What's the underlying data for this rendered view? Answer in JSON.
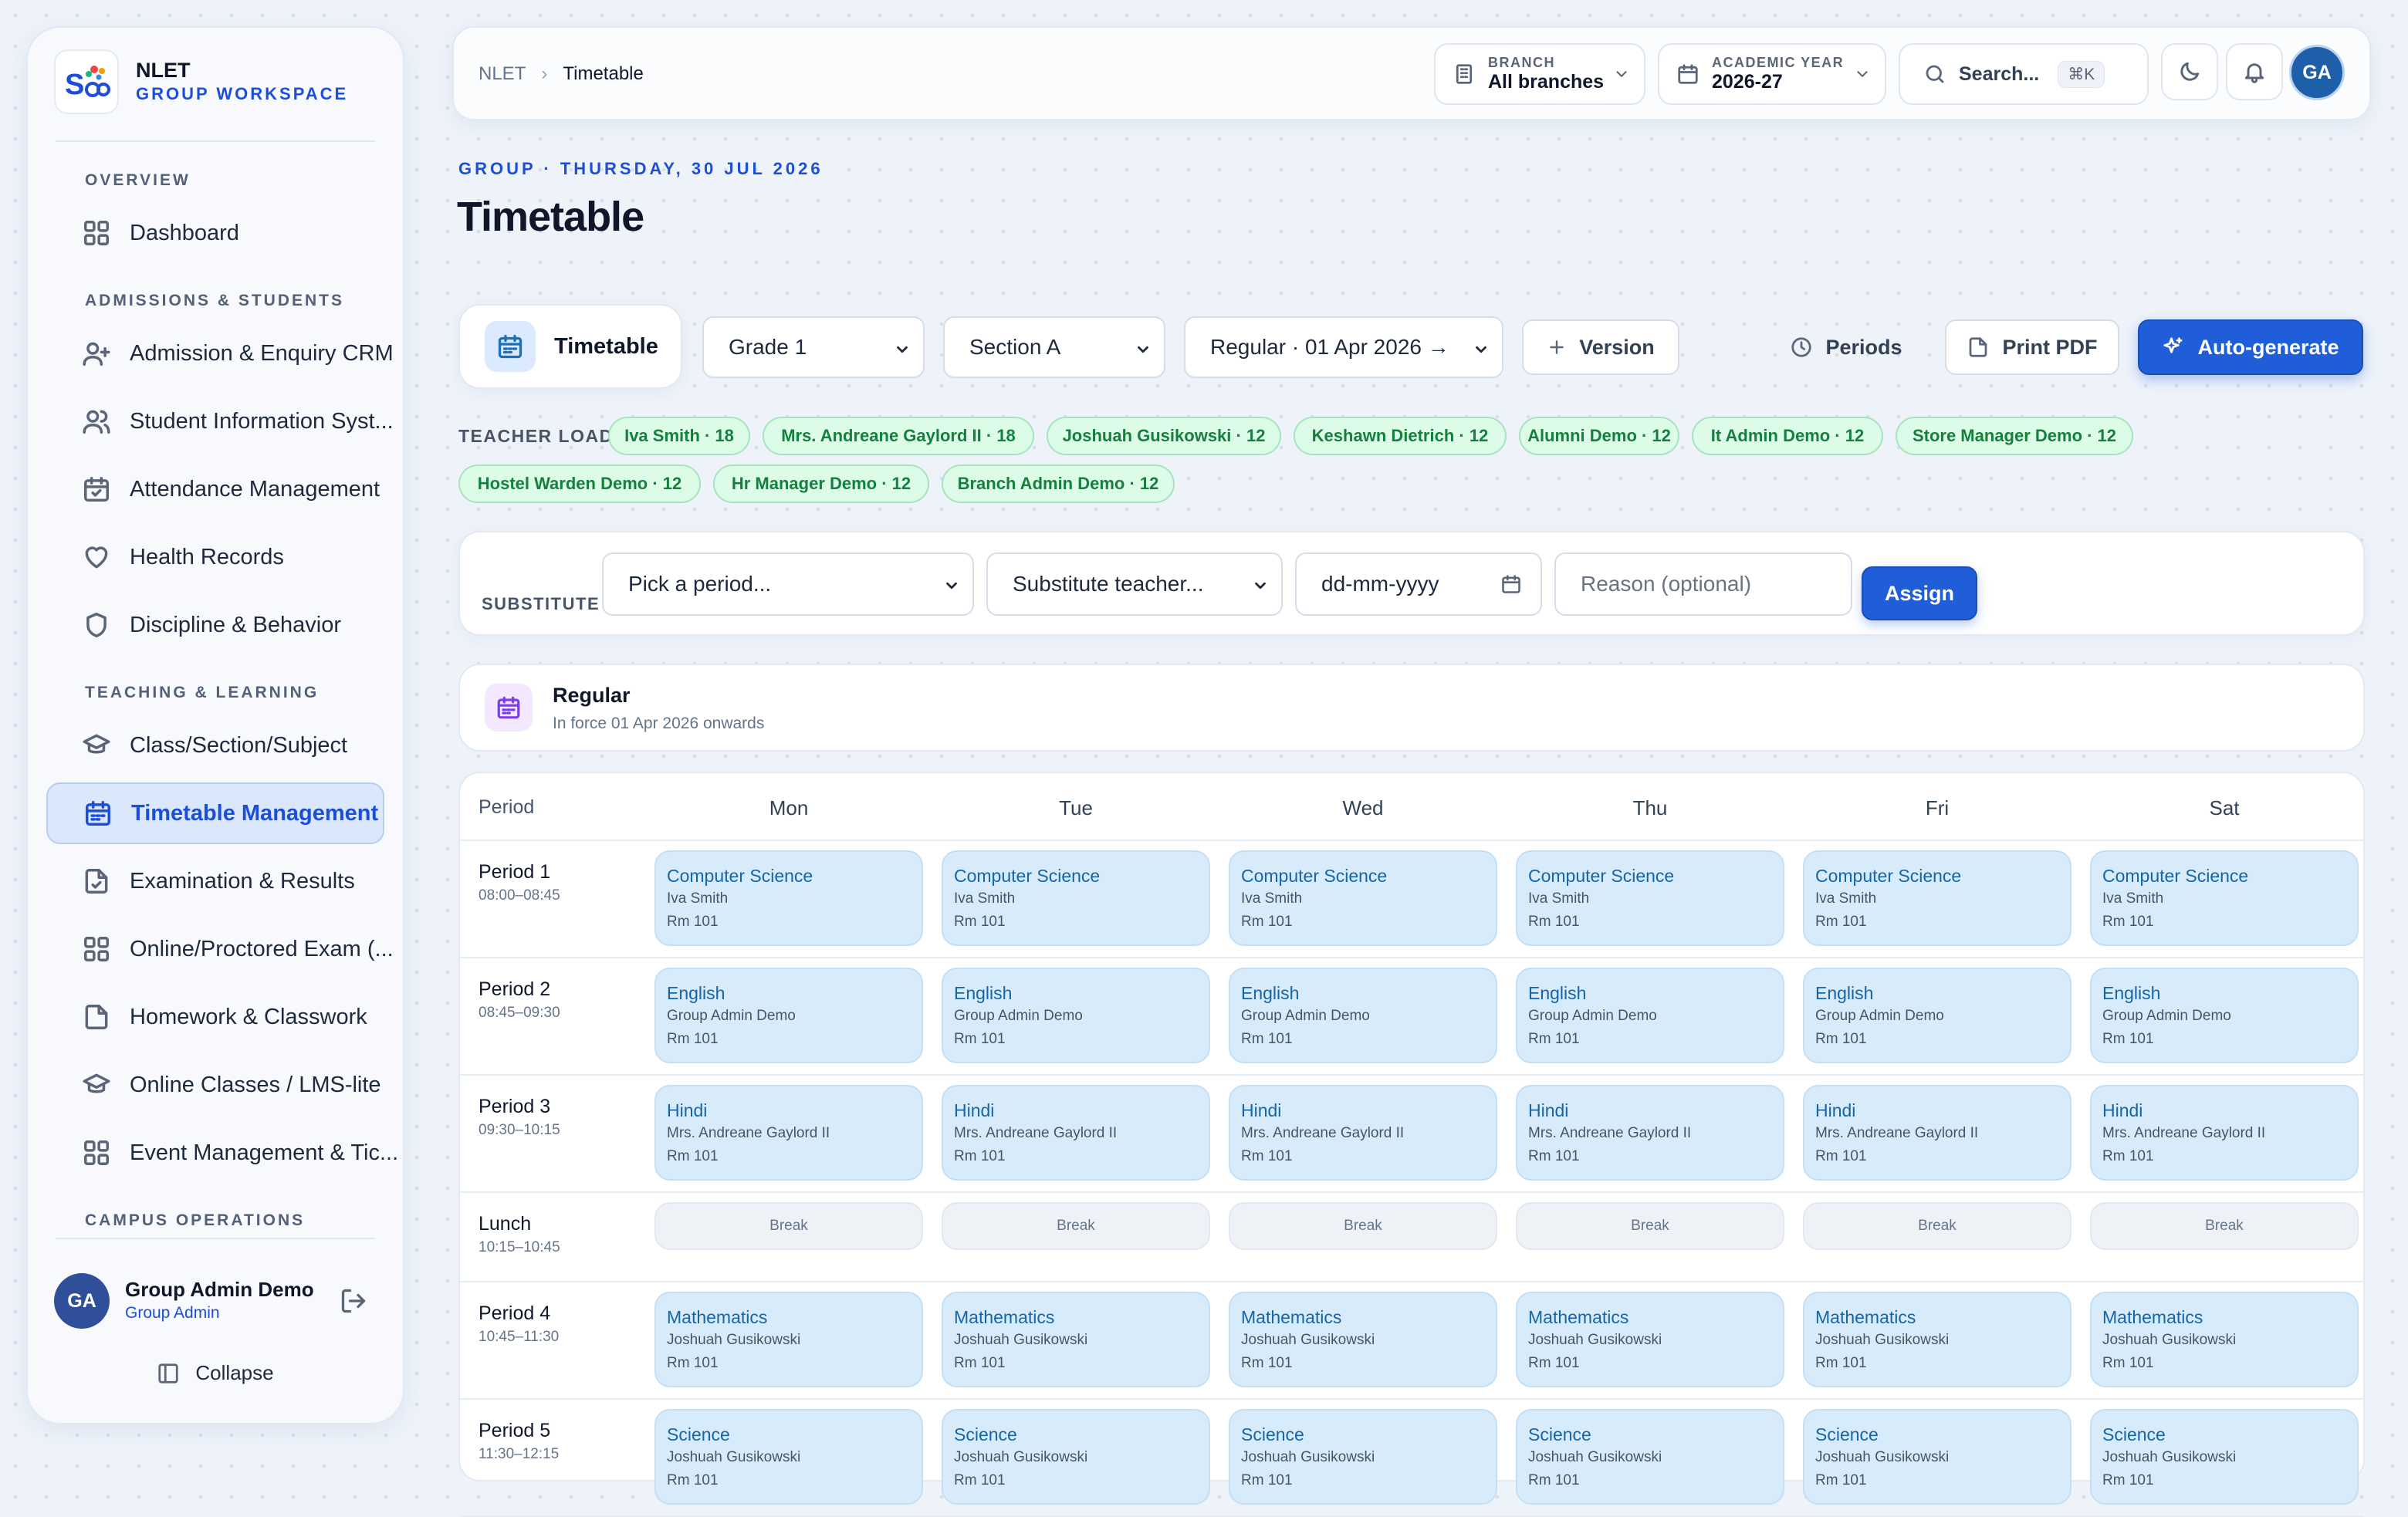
{
  "brand": {
    "name": "NLET",
    "subtitle": "GROUP WORKSPACE"
  },
  "sidebar": {
    "sections": [
      {
        "title": "OVERVIEW",
        "items": [
          {
            "label": "Dashboard",
            "icon": "grid-icon"
          }
        ]
      },
      {
        "title": "ADMISSIONS & STUDENTS",
        "items": [
          {
            "label": "Admission & Enquiry CRM",
            "icon": "user-plus-icon"
          },
          {
            "label": "Student Information Syst...",
            "icon": "users-icon"
          },
          {
            "label": "Attendance Management",
            "icon": "calendar-check-icon"
          },
          {
            "label": "Health Records",
            "icon": "heart-icon"
          },
          {
            "label": "Discipline & Behavior",
            "icon": "shield-icon"
          }
        ]
      },
      {
        "title": "TEACHING & LEARNING",
        "items": [
          {
            "label": "Class/Section/Subject",
            "icon": "graduation-cap-icon"
          },
          {
            "label": "Timetable Management",
            "icon": "calendar-icon",
            "active": true
          },
          {
            "label": "Examination & Results",
            "icon": "file-check-icon"
          },
          {
            "label": "Online/Proctored Exam (...",
            "icon": "grid-icon"
          },
          {
            "label": "Homework & Classwork",
            "icon": "file-icon"
          },
          {
            "label": "Online Classes / LMS-lite",
            "icon": "graduation-cap-icon"
          },
          {
            "label": "Event Management & Tic...",
            "icon": "grid-icon"
          }
        ]
      },
      {
        "title": "CAMPUS OPERATIONS",
        "items": []
      }
    ],
    "user": {
      "initials": "GA",
      "name": "Group Admin Demo",
      "role": "Group Admin"
    },
    "collapse_label": "Collapse"
  },
  "topbar": {
    "breadcrumb_root": "NLET",
    "breadcrumb_current": "Timetable",
    "branch_label": "BRANCH",
    "branch_value": "All branches",
    "year_label": "ACADEMIC YEAR",
    "year_value": "2026-27",
    "search_placeholder": "Search...",
    "search_shortcut": "⌘K",
    "avatar_initials": "GA"
  },
  "page": {
    "eyebrow": "GROUP · THURSDAY, 30 JUL 2026",
    "title": "Timetable"
  },
  "controls": {
    "chip_label": "Timetable",
    "grade": "Grade 1",
    "section": "Section A",
    "version": "Regular · 01 Apr 2026 →",
    "version_button": "Version",
    "periods_button": "Periods",
    "print_button": "Print PDF",
    "autogen_button": "Auto-generate"
  },
  "teacher_load": {
    "label": "TEACHER LOAD",
    "pills": [
      "Iva Smith · 18",
      "Mrs. Andreane Gaylord II · 18",
      "Joshuah Gusikowski · 12",
      "Keshawn Dietrich · 12",
      "Alumni Demo · 12",
      "It Admin Demo · 12",
      "Store Manager Demo · 12",
      "Hostel Warden Demo · 12",
      "Hr Manager Demo · 12",
      "Branch Admin Demo · 12"
    ]
  },
  "substitute": {
    "label": "SUBSTITUTE",
    "period_placeholder": "Pick a period...",
    "teacher_placeholder": "Substitute teacher...",
    "date_placeholder": "dd-mm-yyyy",
    "reason_placeholder": "Reason (optional)",
    "assign_label": "Assign"
  },
  "version_card": {
    "title": "Regular",
    "subtitle": "In force 01 Apr 2026 onwards"
  },
  "grid": {
    "period_header": "Period",
    "days": [
      "Mon",
      "Tue",
      "Wed",
      "Thu",
      "Fri",
      "Sat"
    ],
    "rows": [
      {
        "name": "Period 1",
        "time": "08:00–08:45",
        "subject": "Computer Science",
        "teacher": "Iva Smith",
        "room": "Rm 101"
      },
      {
        "name": "Period 2",
        "time": "08:45–09:30",
        "subject": "English",
        "teacher": "Group Admin Demo",
        "room": "Rm 101"
      },
      {
        "name": "Period 3",
        "time": "09:30–10:15",
        "subject": "Hindi",
        "teacher": "Mrs. Andreane Gaylord II",
        "room": "Rm 101"
      },
      {
        "name": "Lunch",
        "time": "10:15–10:45",
        "break": "Break"
      },
      {
        "name": "Period 4",
        "time": "10:45–11:30",
        "subject": "Mathematics",
        "teacher": "Joshuah Gusikowski",
        "room": "Rm 101"
      },
      {
        "name": "Period 5",
        "time": "11:30–12:15",
        "subject": "Science",
        "teacher": "Joshuah Gusikowski",
        "room": "Rm 101"
      }
    ]
  }
}
